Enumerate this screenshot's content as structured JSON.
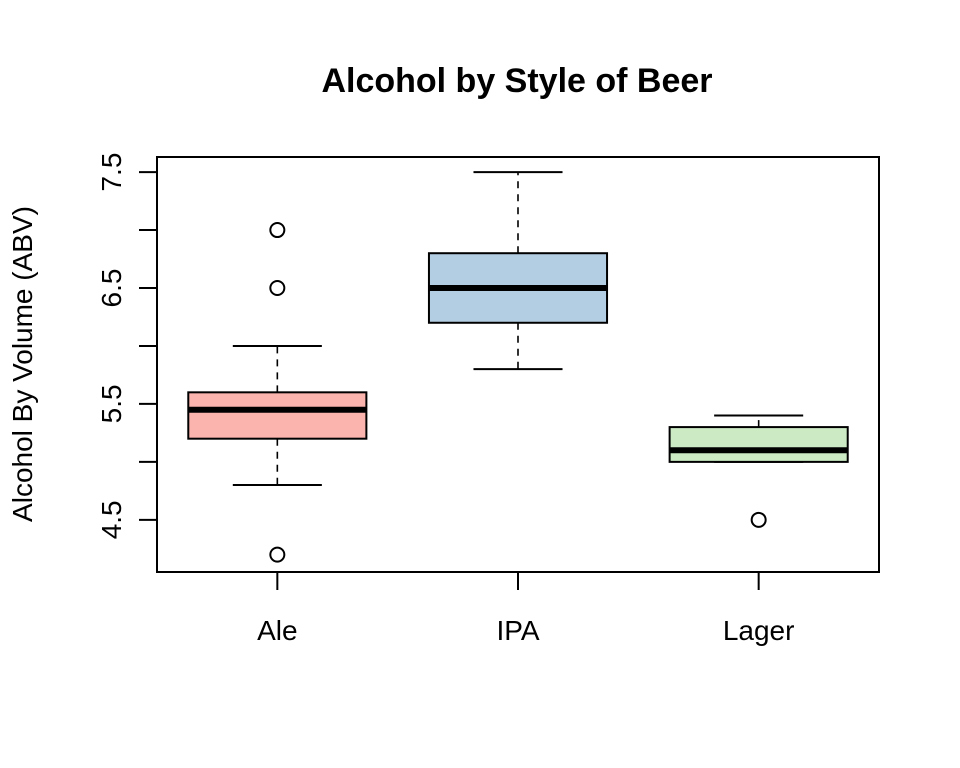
{
  "chart_data": {
    "type": "boxplot",
    "title": "Alcohol by Style of Beer",
    "xlabel": "",
    "ylabel": "Alcohol By Volume (ABV)",
    "ylim": [
      4.05,
      7.63
    ],
    "yticks": [
      4.5,
      5.0,
      5.5,
      6.0,
      6.5,
      7.0,
      7.5
    ],
    "ytick_labels": [
      "4.5",
      "",
      "5.5",
      "",
      "6.5",
      "",
      "7.5"
    ],
    "categories": [
      "Ale",
      "IPA",
      "Lager"
    ],
    "boxes": [
      {
        "category": "Ale",
        "color": "#FBB4AE",
        "whisker_low": 4.8,
        "q1": 5.2,
        "median": 5.45,
        "q3": 5.6,
        "whisker_high": 6.0,
        "outliers": [
          4.2,
          6.5,
          7.0
        ]
      },
      {
        "category": "IPA",
        "color": "#B3CDE3",
        "whisker_low": 5.8,
        "q1": 6.2,
        "median": 6.5,
        "q3": 6.8,
        "whisker_high": 7.5,
        "outliers": []
      },
      {
        "category": "Lager",
        "color": "#CCEBC5",
        "whisker_low": 5.0,
        "q1": 5.0,
        "median": 5.1,
        "q3": 5.3,
        "whisker_high": 5.4,
        "outliers": [
          4.5
        ]
      }
    ],
    "grid": false,
    "legend": "none"
  }
}
